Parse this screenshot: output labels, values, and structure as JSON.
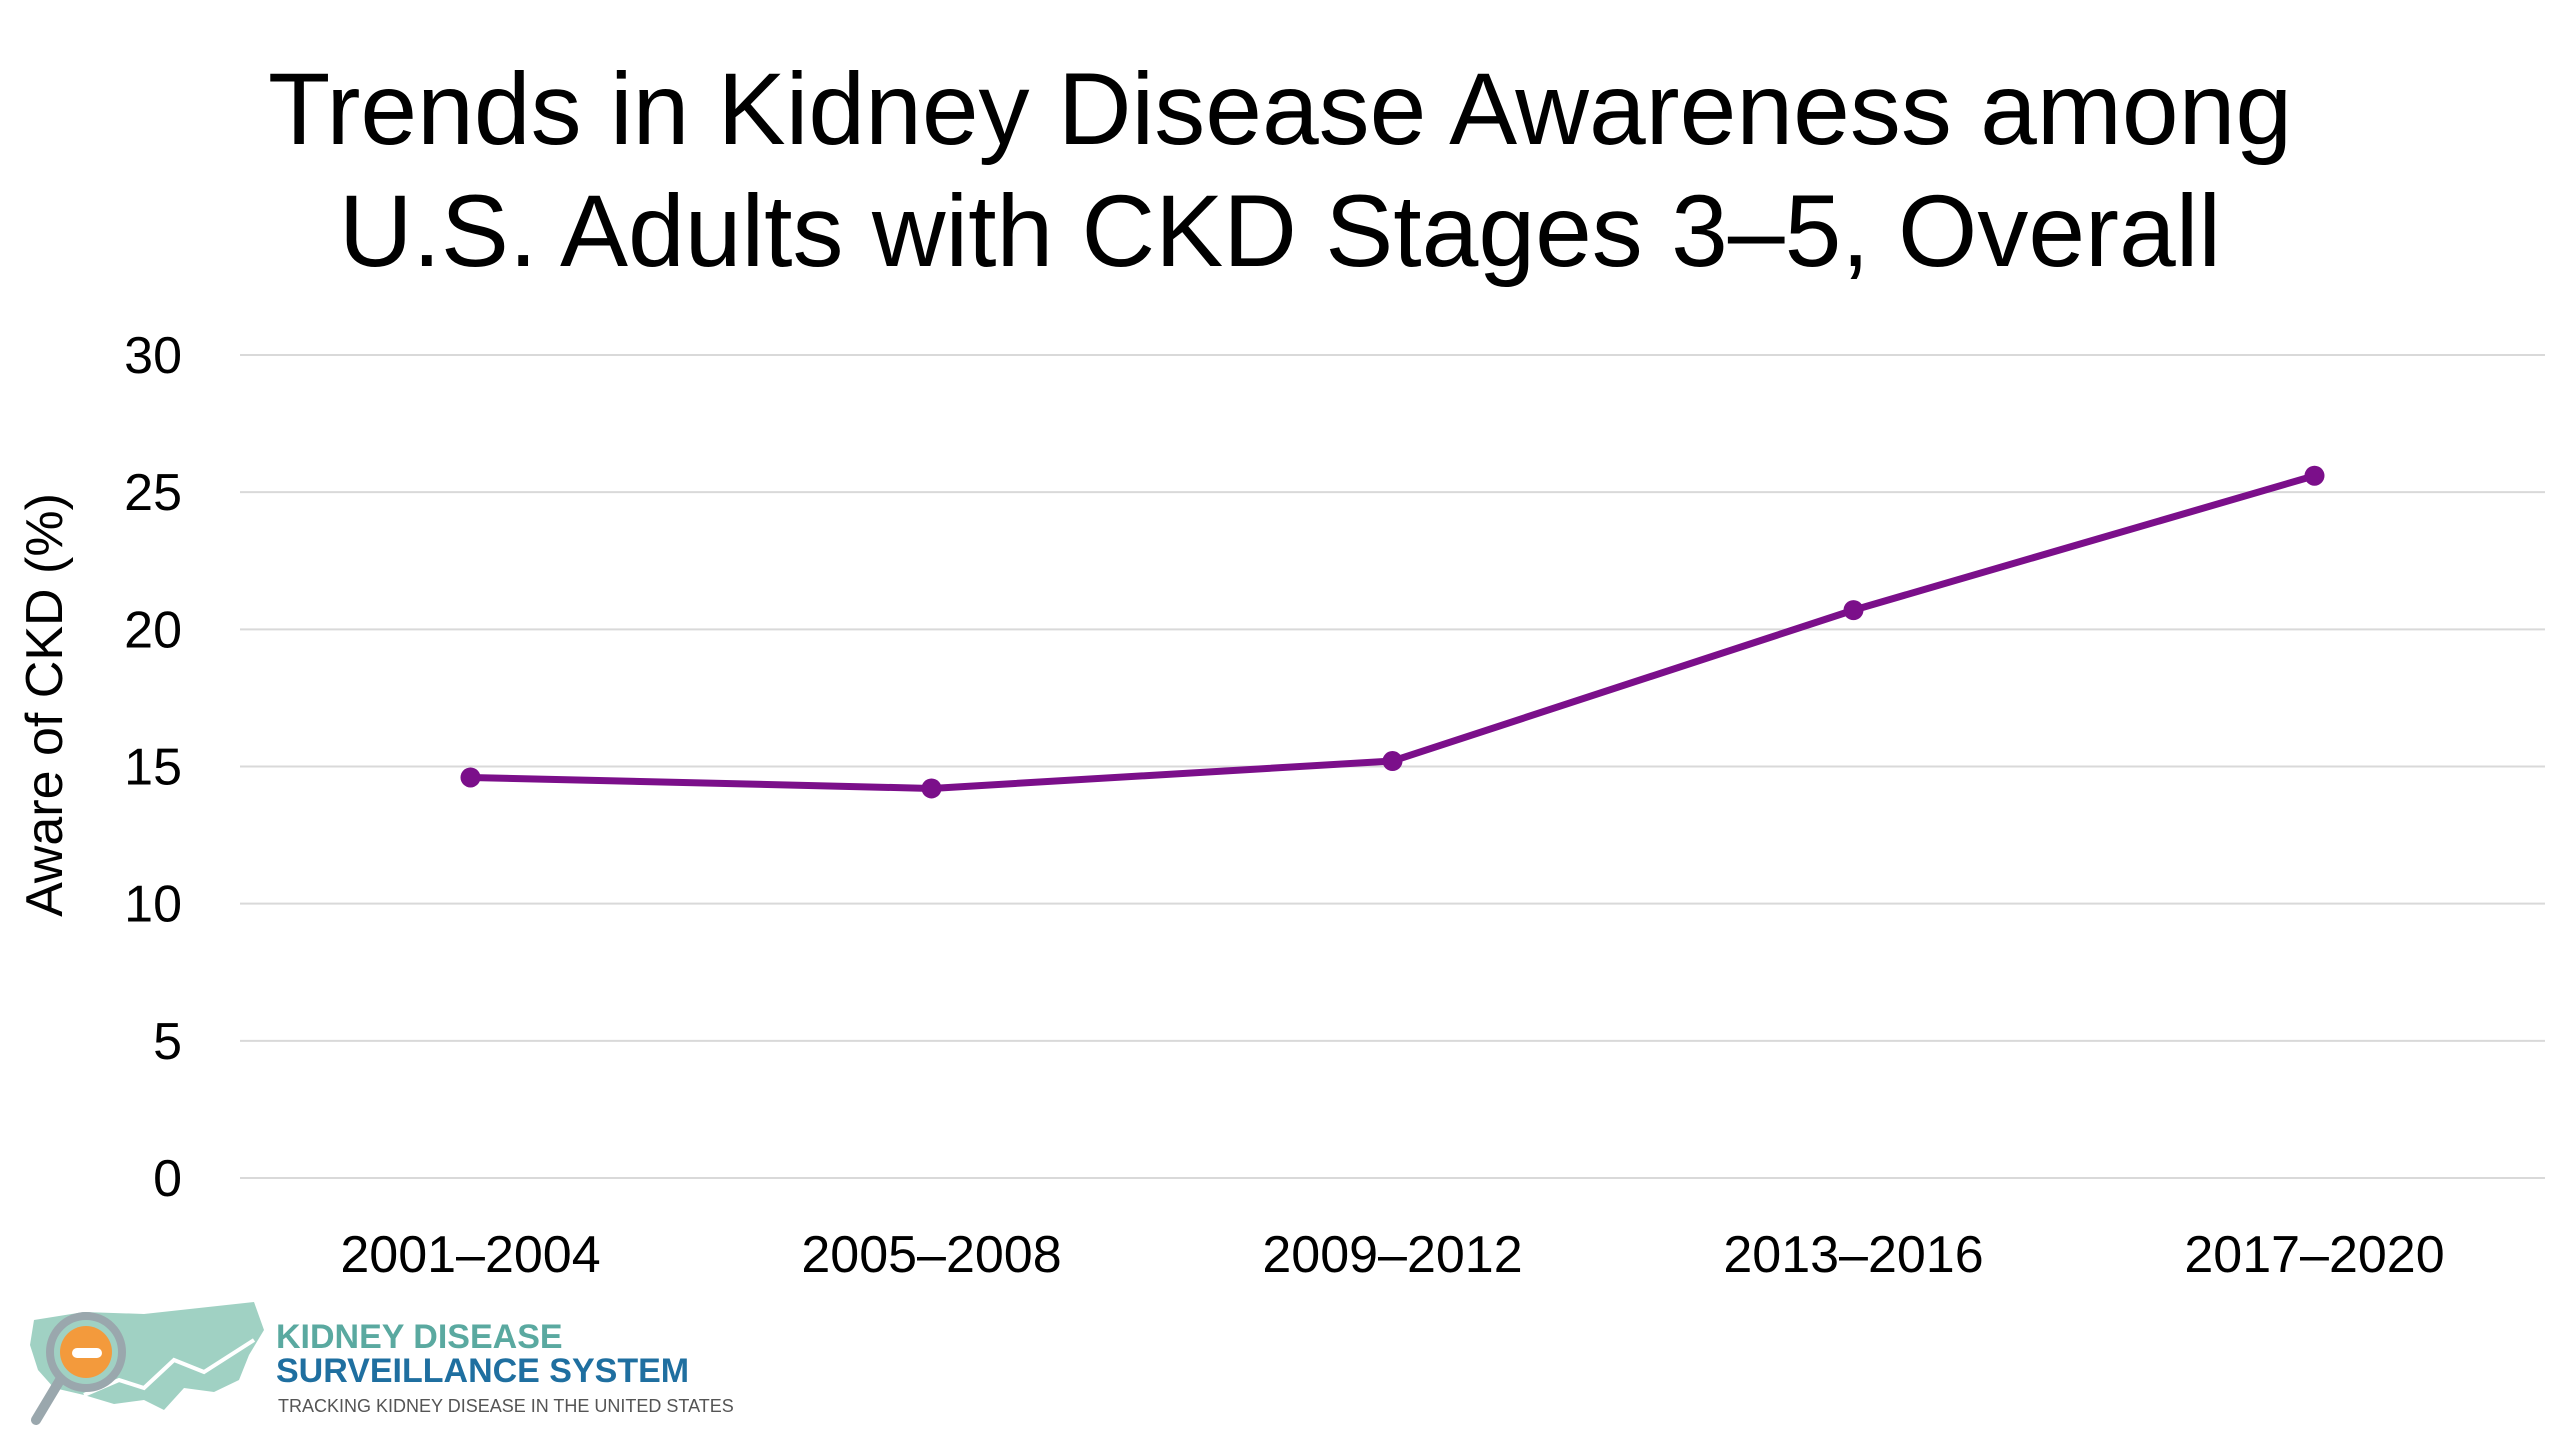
{
  "chart_data": {
    "type": "line",
    "title_lines": [
      "Trends in Kidney Disease Awareness among",
      "U.S. Adults with CKD Stages 3–5, Overall"
    ],
    "xlabel": "",
    "ylabel": "Aware of CKD (%)",
    "ylim": [
      0,
      30
    ],
    "yticks": [
      0,
      5,
      10,
      15,
      20,
      25,
      30
    ],
    "categories": [
      "2001–2004",
      "2005–2008",
      "2009–2012",
      "2013–2016",
      "2017–2020"
    ],
    "series": [
      {
        "values": [
          14.6,
          14.2,
          15.2,
          20.7,
          25.6
        ],
        "color": "#7b0f8a"
      }
    ],
    "grid": true,
    "legend": "none"
  },
  "logo": {
    "line1": "KIDNEY DISEASE",
    "line2": "SURVEILLANCE SYSTEM",
    "line3": "TRACKING KIDNEY DISEASE IN THE UNITED STATES"
  },
  "colors": {
    "gridline": "#d9d9d9",
    "line": "#7b0f8a"
  }
}
